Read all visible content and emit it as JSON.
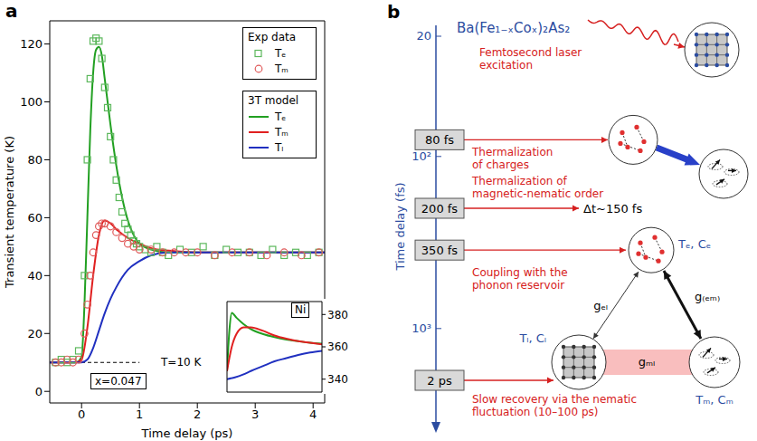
{
  "chart_data": [
    {
      "type": "line",
      "panel_label": "a",
      "x_label": "Time delay (ps)",
      "y_label": "Transient temperature (K)",
      "xlim": [
        -0.55,
        4.2
      ],
      "ylim": [
        -4,
        128
      ],
      "xticks": [
        0,
        1,
        2,
        3,
        4
      ],
      "yticks": [
        0,
        20,
        40,
        60,
        80,
        100,
        120
      ],
      "grid": false,
      "legend": "upper right",
      "series": [
        {
          "name": "Tₑ",
          "group": "Exp data",
          "type": "scatter",
          "marker": "square",
          "color": "#5cb85c",
          "x": [
            -0.45,
            -0.35,
            -0.25,
            -0.15,
            -0.05,
            0.05,
            0.1,
            0.15,
            0.2,
            0.25,
            0.3,
            0.35,
            0.4,
            0.45,
            0.5,
            0.55,
            0.6,
            0.65,
            0.7,
            0.75,
            0.8,
            0.85,
            0.9,
            0.95,
            1.0,
            1.1,
            1.2,
            1.3,
            1.4,
            1.5,
            1.7,
            1.9,
            2.1,
            2.3,
            2.5,
            2.7,
            2.9,
            3.1,
            3.3,
            3.5,
            3.7,
            3.9,
            4.1
          ],
          "values": [
            10,
            11,
            10,
            11,
            14,
            40,
            80,
            108,
            121,
            122,
            121,
            115,
            105,
            98,
            88,
            80,
            73,
            67,
            62,
            58,
            56,
            54,
            52,
            51,
            50,
            49,
            48,
            50,
            48,
            47,
            49,
            48,
            50,
            47,
            49,
            48,
            48,
            47,
            49,
            47,
            48,
            47,
            48
          ]
        },
        {
          "name": "Tₘ",
          "group": "Exp data",
          "type": "scatter",
          "marker": "circle",
          "color": "#e05a5a",
          "x": [
            -0.45,
            -0.35,
            -0.25,
            -0.15,
            -0.05,
            0.05,
            0.1,
            0.15,
            0.2,
            0.25,
            0.3,
            0.35,
            0.4,
            0.5,
            0.6,
            0.7,
            0.8,
            0.9,
            1.0,
            1.2,
            1.4,
            1.6,
            1.8,
            2.0,
            2.3,
            2.6,
            2.9,
            3.2,
            3.5,
            3.8,
            4.1
          ],
          "values": [
            10,
            10,
            11,
            10,
            11,
            20,
            30,
            40,
            48,
            54,
            57,
            58,
            58,
            57,
            55,
            53,
            51,
            50,
            49,
            49,
            48,
            48,
            48,
            48,
            47,
            48,
            48,
            47,
            48,
            47,
            48
          ]
        },
        {
          "name": "Tₑ",
          "group": "3T model",
          "type": "line",
          "color": "#22a022",
          "x": [
            -0.55,
            -0.1,
            0,
            0.05,
            0.1,
            0.15,
            0.2,
            0.25,
            0.3,
            0.35,
            0.4,
            0.5,
            0.6,
            0.7,
            0.8,
            0.9,
            1.0,
            1.2,
            1.5,
            2,
            3,
            4.2
          ],
          "values": [
            10,
            10,
            12,
            30,
            60,
            90,
            110,
            118,
            119,
            116,
            108,
            92,
            78,
            67,
            59,
            54,
            51,
            49,
            48,
            48,
            48,
            48
          ]
        },
        {
          "name": "Tₘ",
          "group": "3T model",
          "type": "line",
          "color": "#e02020",
          "x": [
            -0.55,
            -0.1,
            0,
            0.1,
            0.2,
            0.3,
            0.4,
            0.5,
            0.6,
            0.8,
            1.0,
            1.3,
            1.6,
            2,
            3,
            4.2
          ],
          "values": [
            10,
            10,
            11,
            22,
            40,
            54,
            59,
            58,
            56,
            53,
            51,
            49,
            48.5,
            48,
            48,
            48
          ]
        },
        {
          "name": "Tₗ",
          "group": "3T model",
          "type": "line",
          "color": "#2030c0",
          "x": [
            -0.55,
            0,
            0.1,
            0.2,
            0.3,
            0.4,
            0.5,
            0.6,
            0.8,
            1.0,
            1.2,
            1.5,
            2,
            3,
            4.2
          ],
          "values": [
            10,
            10,
            11,
            15,
            21,
            27,
            32,
            36,
            42,
            45,
            47,
            48,
            48,
            48,
            48
          ]
        }
      ],
      "reference_line": {
        "y": 10,
        "x": [
          -0.55,
          1.0
        ],
        "line_style": "dashed",
        "label": "T=10 K"
      },
      "annotations": [
        {
          "text": "x=0.047"
        }
      ]
    },
    {
      "type": "line",
      "title": "Ni",
      "xlim": [
        0,
        4
      ],
      "ylim": [
        332,
        388
      ],
      "yticks": [
        340,
        360,
        380
      ],
      "tick_labels": "y",
      "series": [
        {
          "color": "#22a022",
          "x": [
            0,
            0.1,
            0.2,
            0.4,
            0.7,
            1,
            1.5,
            2,
            2.5,
            3,
            3.5,
            4
          ],
          "values": [
            345,
            370,
            381,
            378,
            374,
            371,
            368,
            366,
            364.5,
            363.5,
            362.5,
            362
          ]
        },
        {
          "color": "#e02020",
          "x": [
            0,
            0.2,
            0.4,
            0.7,
            1,
            1.5,
            2,
            2.5,
            3,
            3.5,
            4
          ],
          "values": [
            345,
            360,
            368,
            372,
            372,
            370,
            367,
            365,
            363.5,
            362.5,
            361.5
          ]
        },
        {
          "color": "#2030c0",
          "x": [
            0,
            0.3,
            0.7,
            1,
            1.5,
            2,
            2.5,
            3,
            3.5,
            4
          ],
          "values": [
            340,
            341,
            343,
            345,
            348,
            351,
            353,
            355,
            356.5,
            357.5
          ]
        }
      ]
    }
  ],
  "diagram": {
    "panel_label": "b",
    "title": "Ba(Fe₁₋ₓCoₓ)₂As₂",
    "axis": {
      "label": "Time delay (fs)",
      "log": true,
      "ticks": [
        {
          "value": 20,
          "label": "20"
        },
        {
          "value": 100,
          "label": "10²"
        },
        {
          "value": 1000,
          "label": "10³"
        }
      ]
    },
    "steps": [
      {
        "label": "80 fs",
        "value": 80,
        "text": "Thermalization of charges"
      },
      {
        "label": "200 fs",
        "value": 200,
        "text": "Thermalization of magnetic-nematic order",
        "note": "Δt~150 fs"
      },
      {
        "label": "350 fs",
        "value": 350
      },
      {
        "label": "2 ps",
        "value": 2000,
        "text": "Slow recovery via the nematic fluctuation (10–100 ps)"
      }
    ],
    "events": [
      "Femtosecond laser excitation",
      "Coupling with the phonon reservoir"
    ],
    "states": {
      "electrons": "Tₑ, Cₑ",
      "lattice": "Tₗ, Cₗ",
      "magnetic": "Tₘ, Cₘ"
    },
    "couplings": {
      "electron_lattice": "gₑₗ",
      "electron_magnetic": "g₍ₑₘ₎",
      "magnetic_lattice": "gₘₗ"
    }
  }
}
